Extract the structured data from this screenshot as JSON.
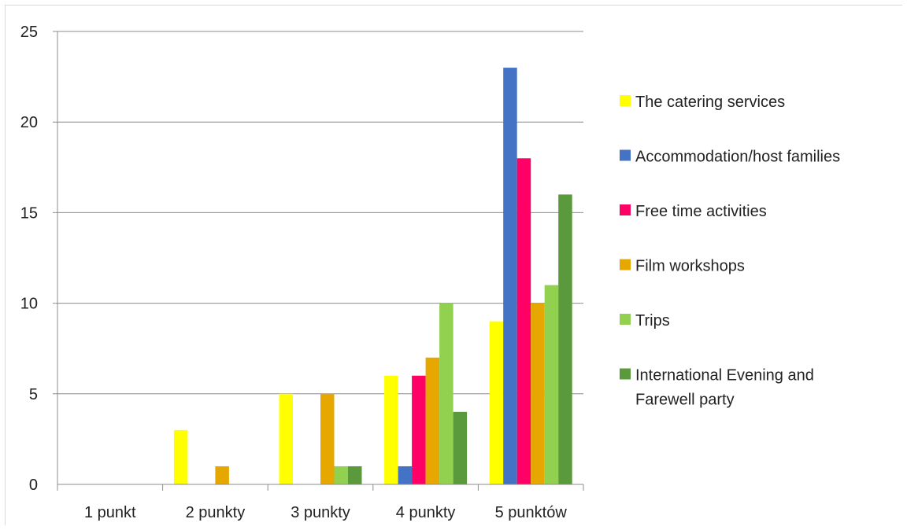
{
  "chart_data": {
    "type": "bar",
    "title": "",
    "xlabel": "",
    "ylabel": "",
    "ylim": [
      0,
      25
    ],
    "yticks": [
      0,
      5,
      10,
      15,
      20,
      25
    ],
    "grid": true,
    "legend_position": "right",
    "categories": [
      "1 punkt",
      "2 punkty",
      "3 punkty",
      "4 punkty",
      "5 punktów"
    ],
    "series": [
      {
        "name": "The catering services",
        "color": "#ffff00",
        "values": [
          0,
          3,
          5,
          6,
          9
        ]
      },
      {
        "name": "Accommodation/host families",
        "color": "#4472c4",
        "values": [
          0,
          0,
          0,
          1,
          23
        ]
      },
      {
        "name": "Free time activities",
        "color": "#ff0066",
        "values": [
          0,
          0,
          0,
          6,
          18
        ]
      },
      {
        "name": "Film workshops",
        "color": "#e6a800",
        "values": [
          0,
          1,
          5,
          7,
          10
        ]
      },
      {
        "name": "Trips",
        "color": "#92d050",
        "values": [
          0,
          0,
          1,
          10,
          11
        ]
      },
      {
        "name": "International Evening and Farewell party",
        "color": "#5a9a3c",
        "values": [
          0,
          0,
          1,
          4,
          16
        ]
      }
    ]
  }
}
